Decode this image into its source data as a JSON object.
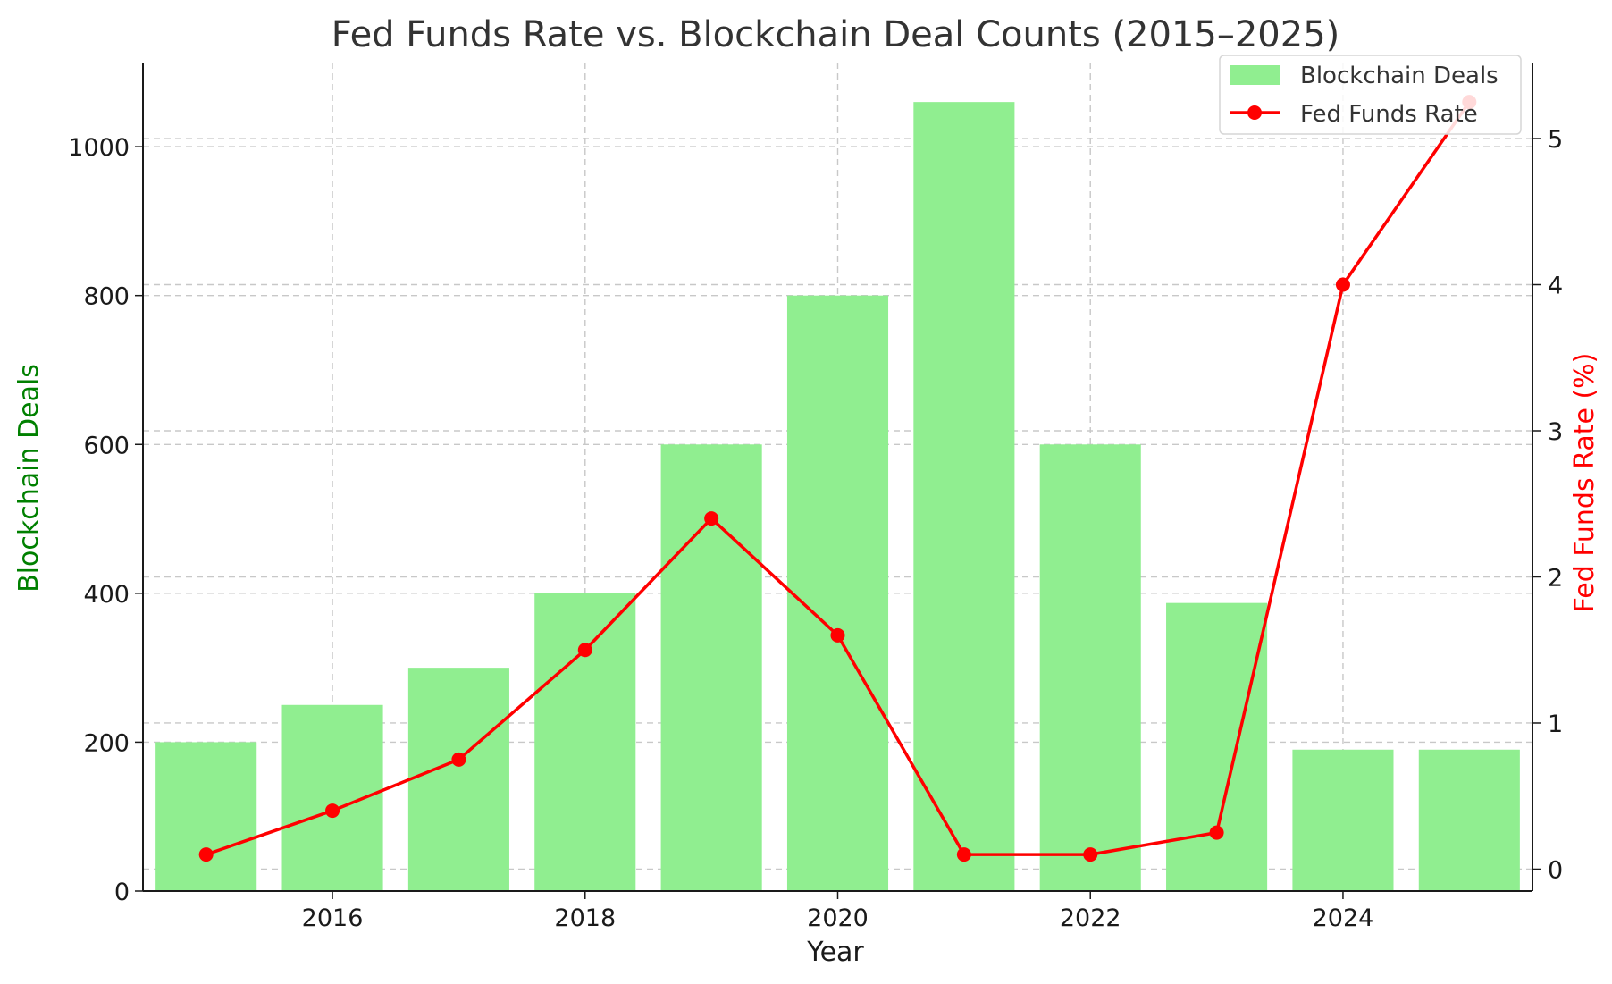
{
  "chart_data": {
    "type": "bar+line",
    "title": "Fed Funds Rate vs. Blockchain Deal Counts (2015–2025)",
    "xlabel": "Year",
    "ylabel_left": "Blockchain Deals",
    "ylabel_right": "Fed Funds Rate (%)",
    "x": [
      2015,
      2016,
      2017,
      2018,
      2019,
      2020,
      2021,
      2022,
      2023,
      2024,
      2025
    ],
    "x_ticks": [
      "2016",
      "2018",
      "2020",
      "2022",
      "2024"
    ],
    "y_left_ticks": [
      "0",
      "200",
      "400",
      "600",
      "800",
      "1000"
    ],
    "y_right_ticks": [
      "0",
      "1",
      "2",
      "3",
      "4",
      "5"
    ],
    "ylim_left": [
      0,
      1113
    ],
    "ylim_right": [
      -0.15,
      5.52
    ],
    "grid": true,
    "legend_position": "top-right",
    "series": [
      {
        "name": "Blockchain Deals",
        "type": "bar",
        "axis": "left",
        "color": "#90ee90",
        "values": [
          200,
          250,
          300,
          400,
          600,
          800,
          1060,
          600,
          387,
          190,
          190
        ]
      },
      {
        "name": "Fed Funds Rate",
        "type": "line",
        "axis": "right",
        "color": "#ff0000",
        "values": [
          0.1,
          0.4,
          0.75,
          1.5,
          2.4,
          1.6,
          0.1,
          0.1,
          0.25,
          4.0,
          5.25
        ]
      }
    ],
    "label_colors": {
      "left": "#008000",
      "right": "#ff0000"
    }
  }
}
